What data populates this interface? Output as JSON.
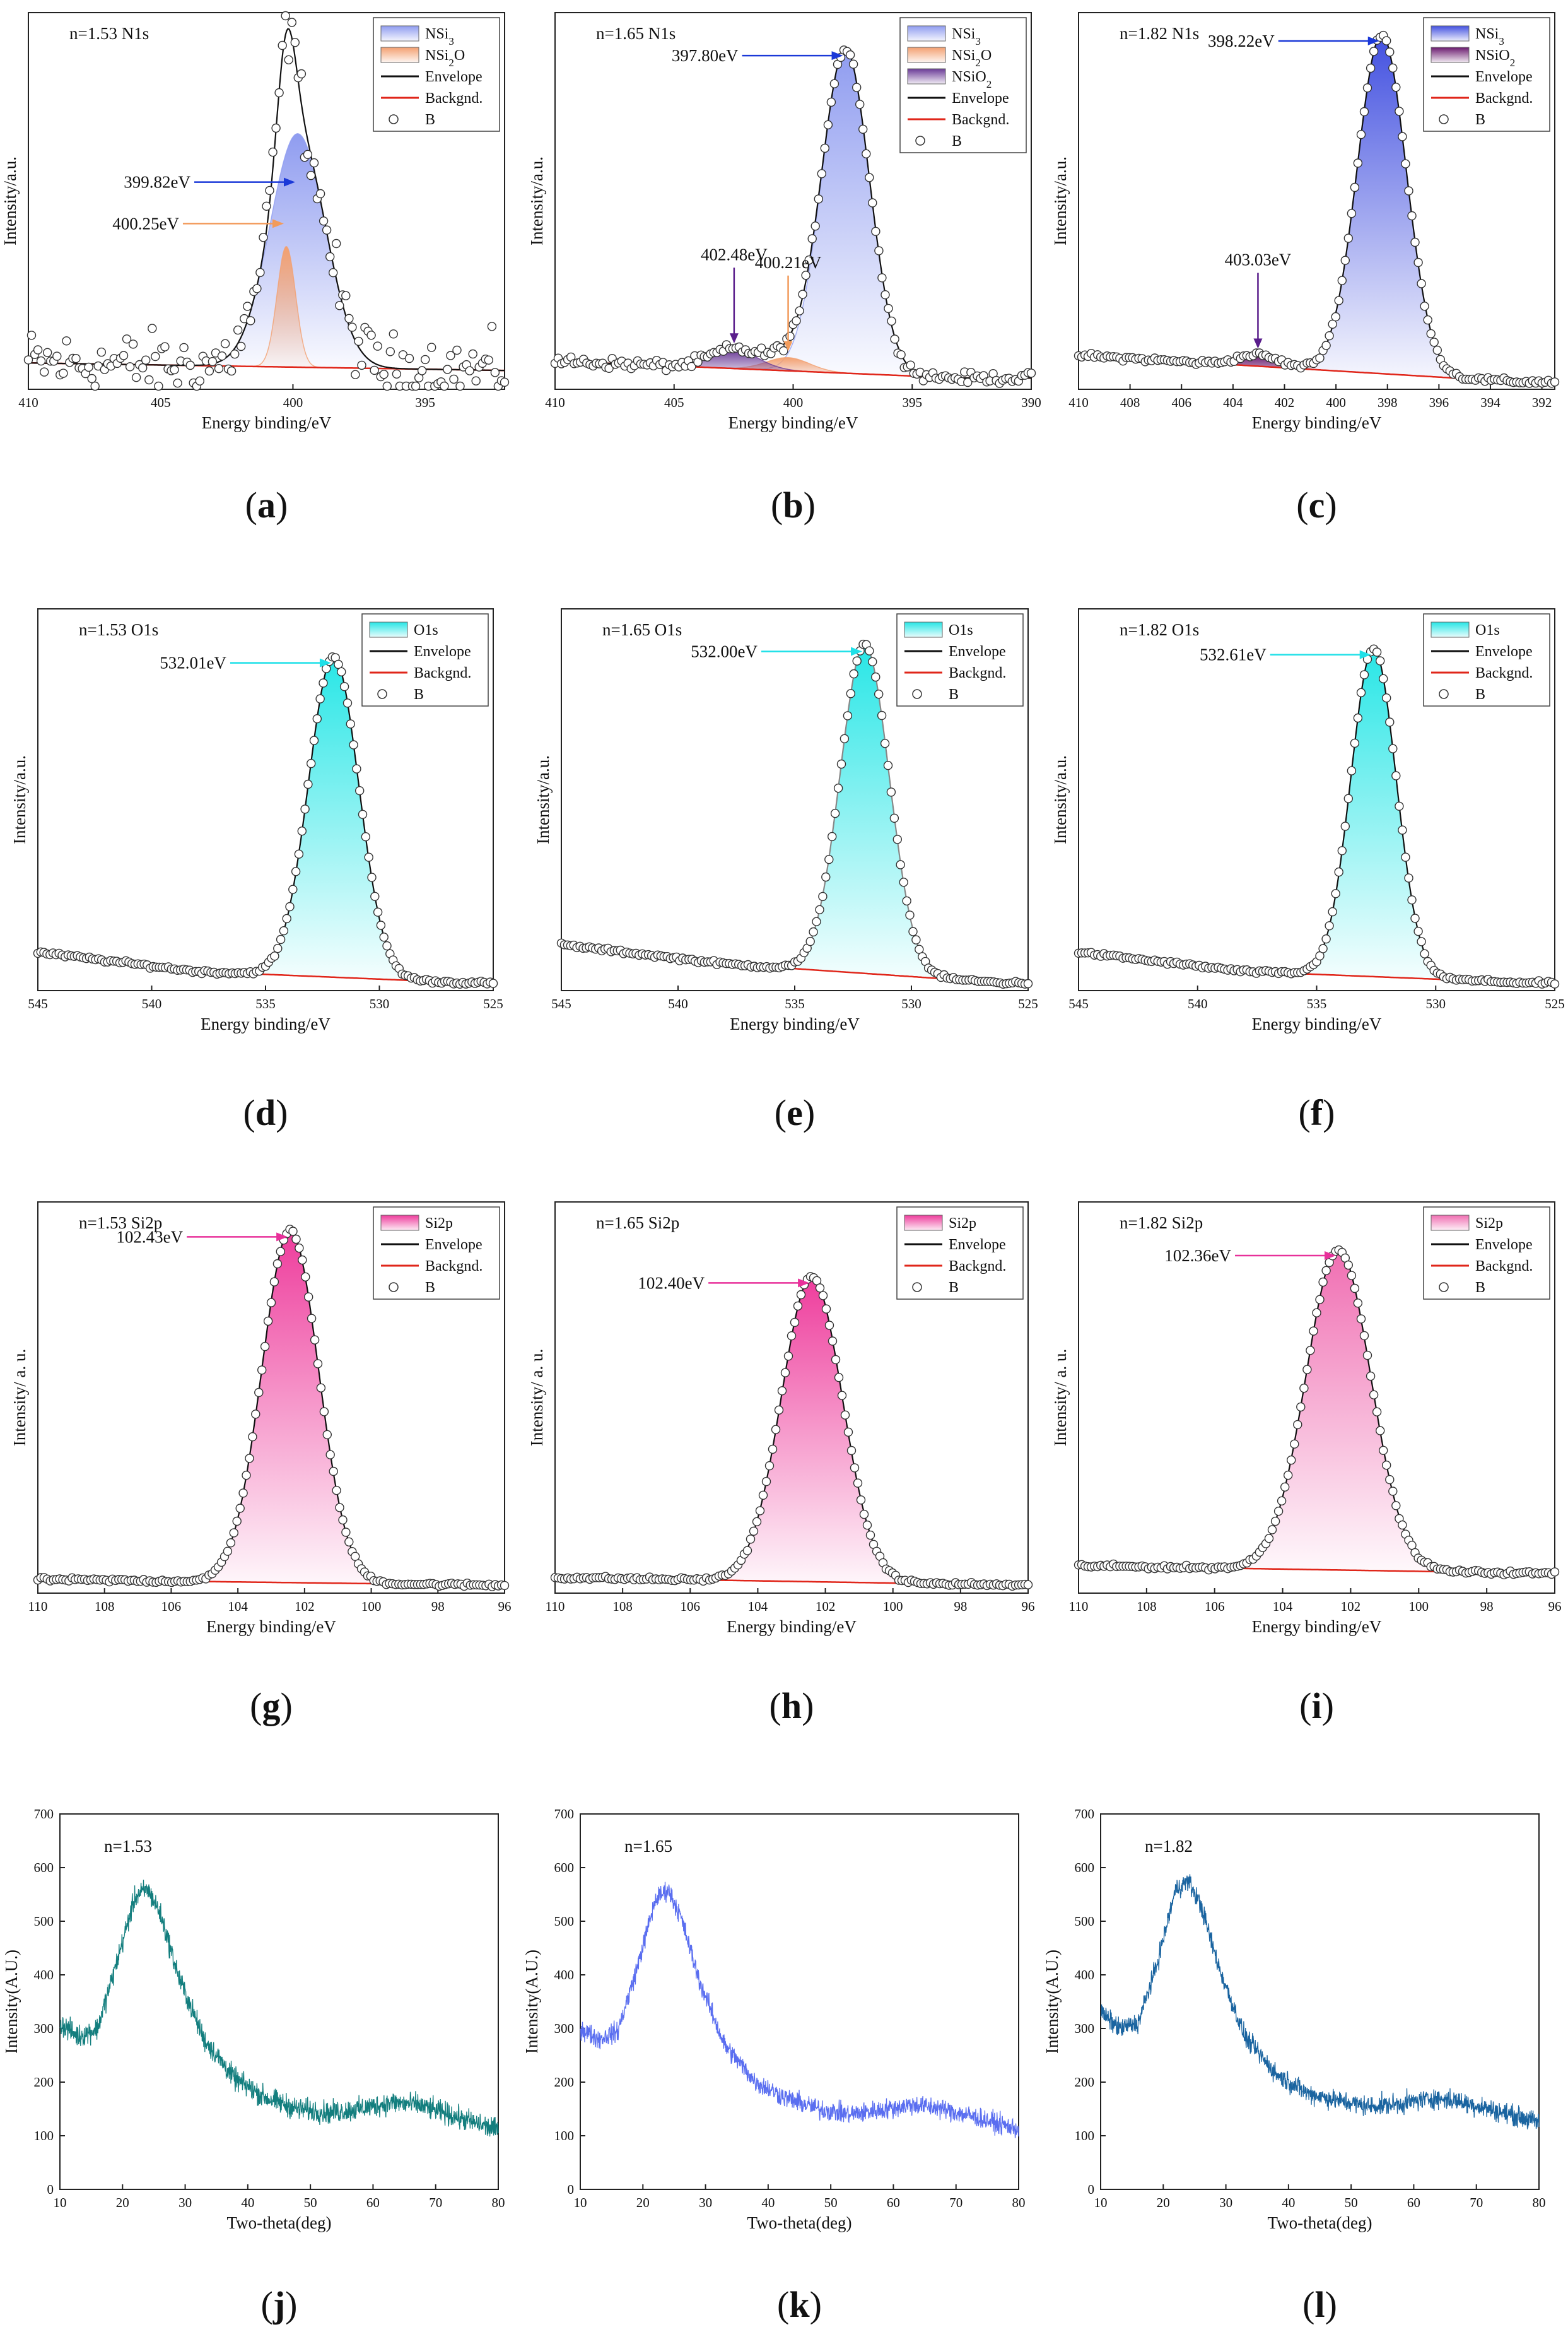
{
  "figure": {
    "panels": [
      {
        "label": "a",
        "chart_data": {
          "type": "area",
          "title": "n=1.53  N1s",
          "xlabel": "Energy binding/eV",
          "ylabel": "Intensity/a.u.",
          "xlim": [
            410,
            392
          ],
          "xticks": [
            410,
            405,
            400,
            395
          ],
          "show_yticks": false,
          "ylim": [
            0,
            1
          ],
          "noise": 0.075,
          "background": [
            [
              410,
              0.07
            ],
            [
              392,
              0.05
            ]
          ],
          "peaks": [
            {
              "name": "NSi3",
              "center": 399.82,
              "amp": 0.62,
              "width": 1.05,
              "color": "#8f9cf0",
              "label": "399.82eV",
              "label_color": "#1a38d8"
            },
            {
              "name": "NSi2O",
              "center": 400.25,
              "amp": 0.32,
              "width": 0.35,
              "color": "#f3a070",
              "label": "400.25eV",
              "label_color": "#f29b5c"
            }
          ],
          "legend": [
            "NSi3",
            "NSi2O",
            "Envelope",
            "Backgnd.",
            "B"
          ]
        }
      },
      {
        "label": "b",
        "chart_data": {
          "type": "area",
          "title": "n=1.65  N1s",
          "xlabel": "Energy binding/eV",
          "ylabel": "Intensity/a.u.",
          "xlim": [
            410,
            390
          ],
          "xticks": [
            410,
            405,
            400,
            395,
            390
          ],
          "show_yticks": false,
          "ylim": [
            0,
            1
          ],
          "noise": 0.012,
          "background": [
            [
              410,
              0.075
            ],
            [
              393,
              0.03
            ]
          ],
          "peaks": [
            {
              "name": "NSi3",
              "center": 397.8,
              "amp": 0.86,
              "width": 1.0,
              "color": "#8f9cf0",
              "label": "397.80eV",
              "label_color": "#1a38d8"
            },
            {
              "name": "NSi2O",
              "center": 400.21,
              "amp": 0.035,
              "width": 0.9,
              "color": "#f3a070",
              "label": "400.21eV",
              "label_color": "#f29b5c"
            },
            {
              "name": "NSiO2",
              "center": 402.48,
              "amp": 0.05,
              "width": 1.0,
              "color": "#6a3a96",
              "label": "402.48eV",
              "label_color": "#5a1e8c"
            }
          ],
          "legend": [
            "NSi3",
            "NSi2O",
            "NSiO2",
            "Envelope",
            "Backgnd.",
            "B"
          ]
        }
      },
      {
        "label": "c",
        "chart_data": {
          "type": "area",
          "title": "n=1.82  N1s",
          "xlabel": "Energy binding/eV",
          "ylabel": "Intensity/a.u.",
          "xlim": [
            410,
            391.5
          ],
          "xticks": [
            410,
            408,
            406,
            404,
            402,
            400,
            398,
            396,
            394,
            392
          ],
          "show_yticks": false,
          "ylim": [
            0,
            1
          ],
          "noise": 0.006,
          "background": [
            [
              410,
              0.09
            ],
            [
              393,
              0.02
            ]
          ],
          "peaks": [
            {
              "name": "NSi3",
              "center": 398.22,
              "amp": 0.9,
              "width": 0.95,
              "color": "#4250e0",
              "label": "398.22eV",
              "label_color": "#1a38d8"
            },
            {
              "name": "NSiO2",
              "center": 403.03,
              "amp": 0.03,
              "width": 0.8,
              "color": "#6a1a6e",
              "label": "403.03eV",
              "label_color": "#5a1e8c"
            }
          ],
          "legend": [
            "NSi3",
            "NSiO2",
            "Envelope",
            "Backgnd.",
            "B"
          ]
        }
      },
      {
        "label": "d",
        "chart_data": {
          "type": "area",
          "title": "n=1.53  O1s",
          "xlabel": "Energy binding/eV",
          "ylabel": "Intensity/a.u.",
          "xlim": [
            545,
            525
          ],
          "xticks": [
            545,
            540,
            535,
            530,
            525
          ],
          "show_yticks": false,
          "ylim": [
            0,
            1
          ],
          "noise": 0.004,
          "background": [
            [
              545,
              0.1
            ],
            [
              538,
              0.05
            ],
            [
              526,
              0.02
            ]
          ],
          "peaks": [
            {
              "name": "O1s",
              "center": 532.01,
              "amp": 0.84,
              "width": 1.1,
              "color": "#27e6e6",
              "label": "532.01eV",
              "label_color": "#1fe0e8"
            }
          ],
          "legend": [
            "O1s",
            "Envelope",
            "Backgnd.",
            "B"
          ]
        }
      },
      {
        "label": "e",
        "chart_data": {
          "type": "area",
          "title": "n=1.65  O1s",
          "xlabel": "Energy binding/eV",
          "ylabel": "Intensity/a.u.",
          "xlim": [
            545,
            525
          ],
          "xticks": [
            545,
            540,
            535,
            530,
            525
          ],
          "show_yticks": false,
          "ylim": [
            0,
            1
          ],
          "noise": 0.004,
          "background": [
            [
              545,
              0.12
            ],
            [
              538,
              0.07
            ],
            [
              526,
              0.02
            ]
          ],
          "peaks": [
            {
              "name": "O1s",
              "center": 532.0,
              "amp": 0.86,
              "width": 1.05,
              "color": "#27e6e6",
              "label": "532.00eV",
              "label_color": "#1fe0e8"
            }
          ],
          "legend": [
            "O1s",
            "Envelope",
            "Backgnd.",
            "B"
          ]
        }
      },
      {
        "label": "f",
        "chart_data": {
          "type": "area",
          "title": "n=1.82  O1s",
          "xlabel": "Energy binding/eV",
          "ylabel": "Intensity/a.u.",
          "xlim": [
            545,
            525
          ],
          "xticks": [
            545,
            540,
            535,
            530,
            525
          ],
          "show_yticks": false,
          "ylim": [
            0,
            1
          ],
          "noise": 0.004,
          "background": [
            [
              545,
              0.1
            ],
            [
              538,
              0.05
            ],
            [
              526,
              0.02
            ]
          ],
          "peaks": [
            {
              "name": "O1s",
              "center": 532.61,
              "amp": 0.86,
              "width": 0.95,
              "color": "#27e6e6",
              "label": "532.61eV",
              "label_color": "#1fe0e8"
            }
          ],
          "legend": [
            "O1s",
            "Envelope",
            "Backgnd.",
            "B"
          ]
        }
      },
      {
        "label": "g",
        "chart_data": {
          "type": "area",
          "title": "n=1.53  Si2p",
          "xlabel": "Energy binding/eV",
          "ylabel": "Intensity/ a. u.",
          "xlim": [
            110,
            96
          ],
          "xticks": [
            110,
            108,
            106,
            104,
            102,
            100,
            98,
            96
          ],
          "show_yticks": false,
          "ylim": [
            0,
            1
          ],
          "noise": 0.004,
          "background": [
            [
              110,
              0.035
            ],
            [
              96,
              0.02
            ]
          ],
          "peaks": [
            {
              "name": "Si2p",
              "center": 102.43,
              "amp": 0.9,
              "width": 0.85,
              "color": "#ee3c9c",
              "label": "102.43eV",
              "label_color": "#e8309a"
            }
          ],
          "legend": [
            "Si2p",
            "Envelope",
            "Backgnd.",
            "B"
          ]
        }
      },
      {
        "label": "h",
        "chart_data": {
          "type": "area",
          "title": "n=1.65  Si2p",
          "xlabel": "Energy binding/eV",
          "ylabel": "Intensity/ a. u.",
          "xlim": [
            110,
            96
          ],
          "xticks": [
            110,
            108,
            106,
            104,
            102,
            100,
            98,
            96
          ],
          "show_yticks": false,
          "ylim": [
            0,
            1
          ],
          "noise": 0.004,
          "background": [
            [
              110,
              0.04
            ],
            [
              96,
              0.02
            ]
          ],
          "peaks": [
            {
              "name": "Si2p",
              "center": 102.4,
              "amp": 0.78,
              "width": 0.9,
              "color": "#ee3c9c",
              "label": "102.40eV",
              "label_color": "#e8309a"
            }
          ],
          "legend": [
            "Si2p",
            "Envelope",
            "Backgnd.",
            "B"
          ]
        }
      },
      {
        "label": "i",
        "chart_data": {
          "type": "area",
          "title": "n=1.82  Si2p",
          "xlabel": "Energy binding/eV",
          "ylabel": "Intensity/ a. u.",
          "xlim": [
            110,
            96
          ],
          "xticks": [
            110,
            108,
            106,
            104,
            102,
            100,
            98,
            96
          ],
          "show_yticks": false,
          "ylim": [
            0,
            1
          ],
          "noise": 0.004,
          "background": [
            [
              110,
              0.07
            ],
            [
              96,
              0.05
            ]
          ],
          "peaks": [
            {
              "name": "Si2p",
              "center": 102.36,
              "amp": 0.82,
              "width": 0.95,
              "color": "#f06eb2",
              "label": "102.36eV",
              "label_color": "#e8309a"
            }
          ],
          "legend": [
            "Si2p",
            "Envelope",
            "Backgnd.",
            "B"
          ]
        }
      },
      {
        "label": "j",
        "chart_data": {
          "type": "line",
          "title": "n=1.53",
          "xlabel": "Two-theta(deg)",
          "ylabel": "Intensity(A.U.)",
          "xlim": [
            10,
            80
          ],
          "ylim": [
            0,
            700
          ],
          "xticks": [
            10,
            20,
            30,
            40,
            50,
            60,
            70,
            80
          ],
          "yticks": [
            0,
            100,
            200,
            300,
            400,
            500,
            600,
            700
          ],
          "color": "#137e7e",
          "noise": 18,
          "curve": [
            [
              10,
              310
            ],
            [
              13,
              285
            ],
            [
              16,
              300
            ],
            [
              19,
              420
            ],
            [
              22,
              545
            ],
            [
              24,
              560
            ],
            [
              26,
              515
            ],
            [
              29,
              395
            ],
            [
              33,
              280
            ],
            [
              38,
              205
            ],
            [
              43,
              170
            ],
            [
              48,
              150
            ],
            [
              53,
              143
            ],
            [
              58,
              150
            ],
            [
              63,
              162
            ],
            [
              67,
              158
            ],
            [
              72,
              140
            ],
            [
              76,
              125
            ],
            [
              80,
              110
            ]
          ]
        }
      },
      {
        "label": "k",
        "chart_data": {
          "type": "line",
          "title": "n=1.65",
          "xlabel": "Two-theta(deg)",
          "ylabel": "Intensity(A.U.)",
          "xlim": [
            10,
            80
          ],
          "ylim": [
            0,
            700
          ],
          "xticks": [
            10,
            20,
            30,
            40,
            50,
            60,
            70,
            80
          ],
          "yticks": [
            0,
            100,
            200,
            300,
            400,
            500,
            600,
            700
          ],
          "color": "#5a6ef0",
          "noise": 16,
          "curve": [
            [
              10,
              300
            ],
            [
              13,
              280
            ],
            [
              16,
              295
            ],
            [
              19,
              410
            ],
            [
              22,
              540
            ],
            [
              24,
              560
            ],
            [
              26,
              510
            ],
            [
              29,
              390
            ],
            [
              33,
              270
            ],
            [
              38,
              200
            ],
            [
              43,
              170
            ],
            [
              48,
              150
            ],
            [
              53,
              140
            ],
            [
              58,
              148
            ],
            [
              63,
              158
            ],
            [
              67,
              152
            ],
            [
              72,
              138
            ],
            [
              76,
              125
            ],
            [
              80,
              112
            ]
          ]
        }
      },
      {
        "label": "l",
        "chart_data": {
          "type": "line",
          "title": "n=1.82",
          "xlabel": "Two-theta(deg)",
          "ylabel": "Intensity(A.U.)",
          "xlim": [
            10,
            80
          ],
          "ylim": [
            0,
            700
          ],
          "xticks": [
            10,
            20,
            30,
            40,
            50,
            60,
            70,
            80
          ],
          "yticks": [
            0,
            100,
            200,
            300,
            400,
            500,
            600,
            700
          ],
          "color": "#1a64a0",
          "noise": 16,
          "curve": [
            [
              10,
              330
            ],
            [
              13,
              300
            ],
            [
              16,
              310
            ],
            [
              19,
              420
            ],
            [
              22,
              560
            ],
            [
              24,
              575
            ],
            [
              26,
              530
            ],
            [
              29,
              410
            ],
            [
              33,
              285
            ],
            [
              38,
              215
            ],
            [
              43,
              180
            ],
            [
              48,
              165
            ],
            [
              53,
              155
            ],
            [
              58,
              160
            ],
            [
              63,
              170
            ],
            [
              67,
              165
            ],
            [
              72,
              150
            ],
            [
              76,
              138
            ],
            [
              80,
              125
            ]
          ]
        }
      }
    ]
  }
}
